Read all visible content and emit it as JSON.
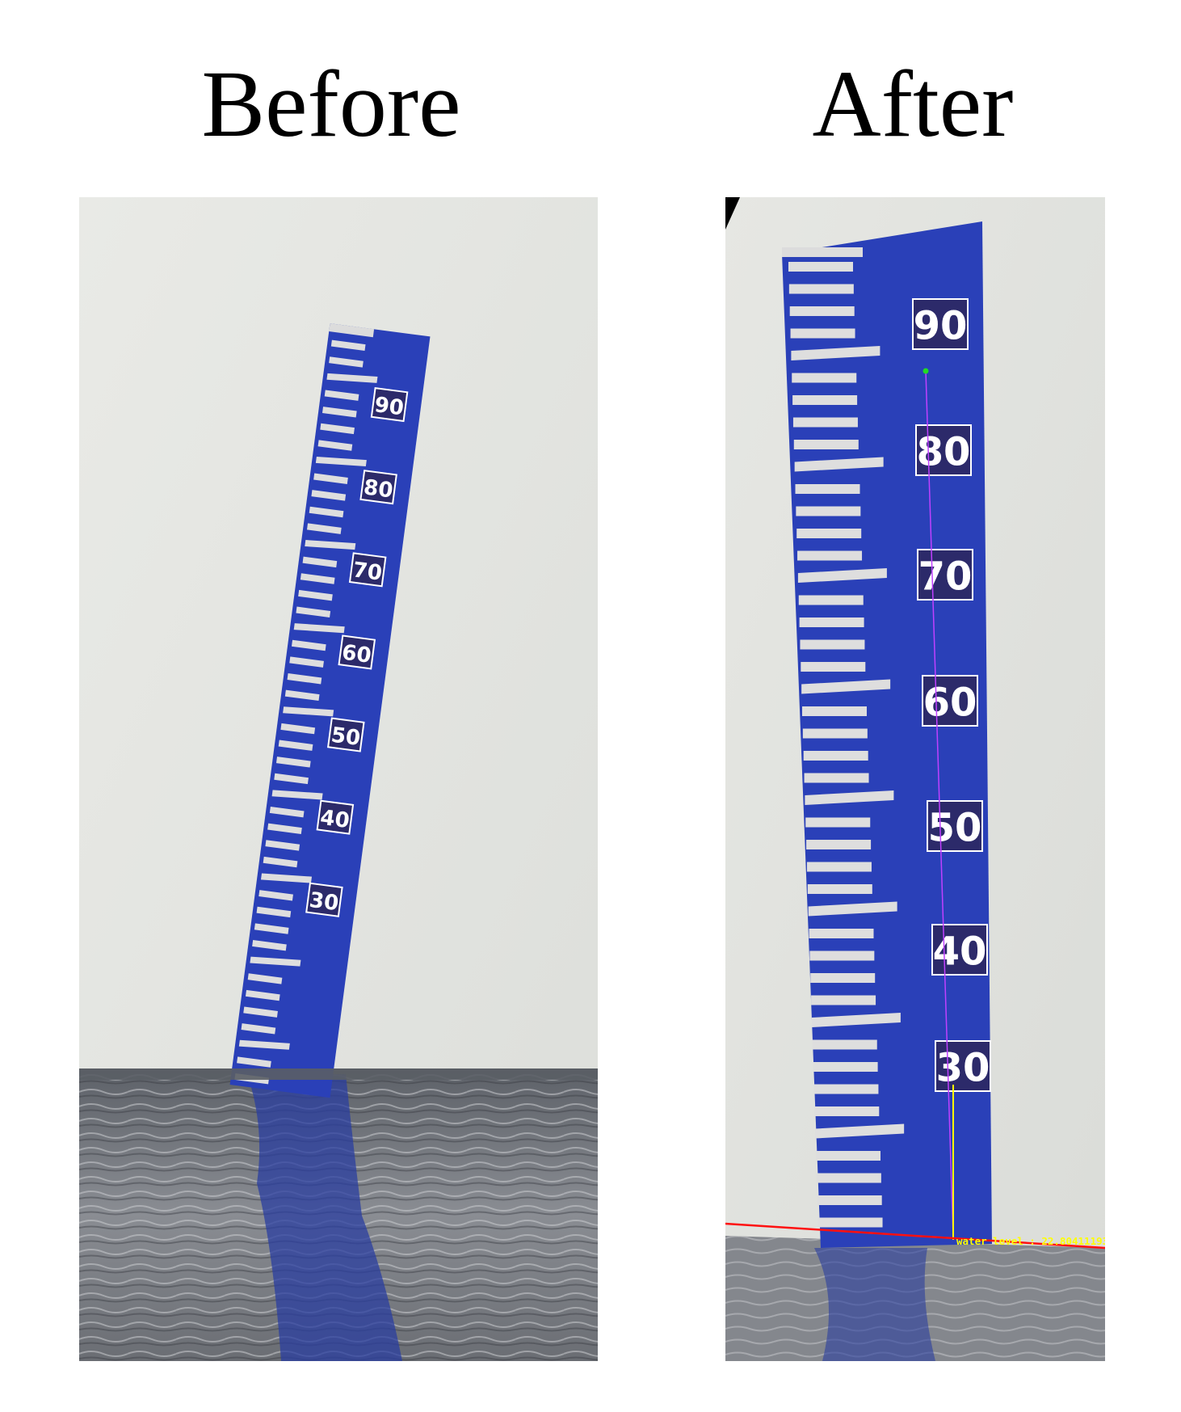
{
  "labels": {
    "before": "Before",
    "after": "After"
  },
  "gauge": {
    "marks": [
      "90",
      "80",
      "70",
      "60",
      "50",
      "40",
      "30"
    ]
  },
  "annotation": {
    "water_level_text": "water level : 22.80411193"
  },
  "colors": {
    "gauge_blue": "#2a40b8",
    "wall": "#e4e5e1",
    "water": "#6e727a",
    "center_line": "#c040ff",
    "water_line": "#ff1010",
    "marker_line": "#ffff00",
    "top_point": "#22dd22"
  }
}
